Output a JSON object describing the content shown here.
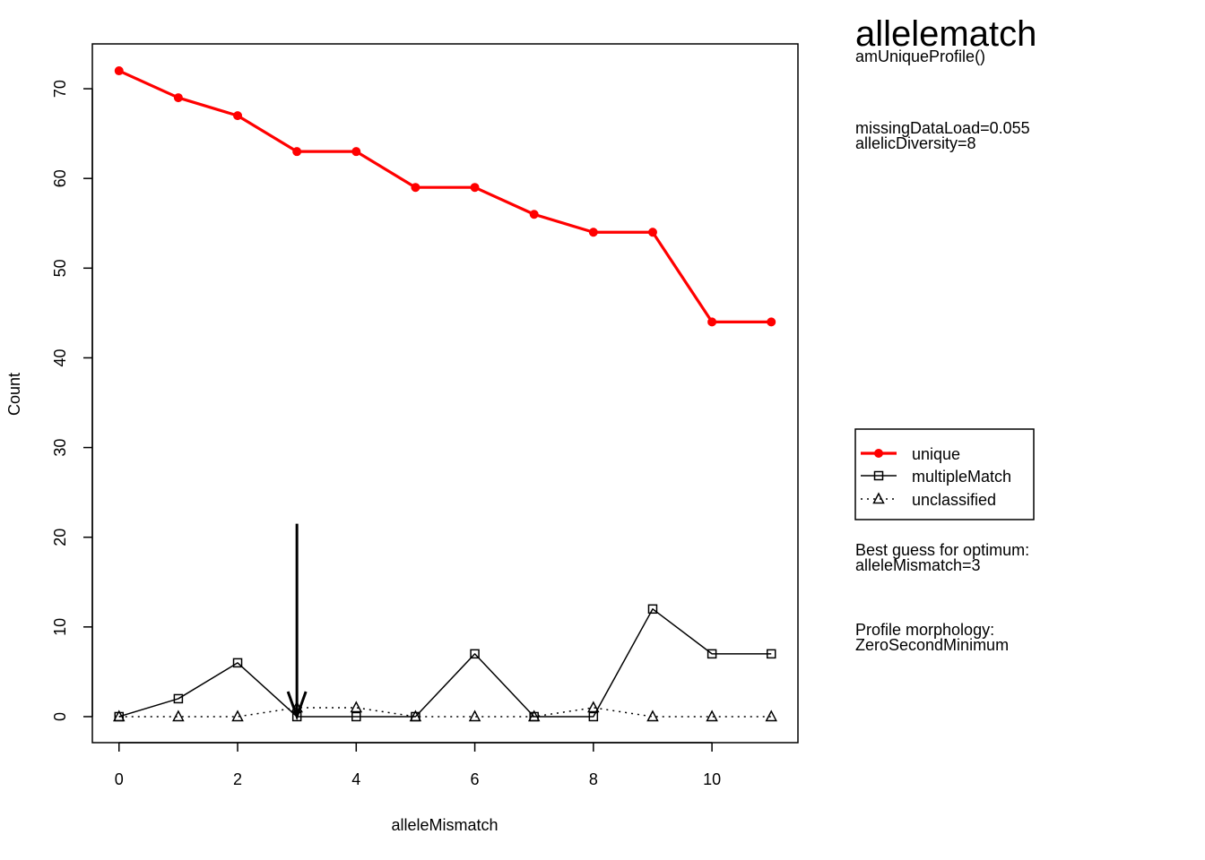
{
  "header": {
    "title": "allelematch",
    "subtitle": "amUniqueProfile()"
  },
  "stats": {
    "line1": "missingDataLoad=0.055",
    "line2": "allelicDiversity=8"
  },
  "guess": {
    "line1": "Best guess for optimum:",
    "line2": "alleleMismatch=3"
  },
  "morphology": {
    "line1": "Profile morphology:",
    "line2": "ZeroSecondMinimum"
  },
  "chart_data": {
    "type": "line",
    "xlabel": "alleleMismatch",
    "ylabel": "Count",
    "x": [
      0,
      1,
      2,
      3,
      4,
      5,
      6,
      7,
      8,
      9,
      10,
      11
    ],
    "xlim": [
      -0.45,
      11.45
    ],
    "ylim": [
      -2.9,
      75
    ],
    "xticks": [
      0,
      2,
      4,
      6,
      8,
      10
    ],
    "yticks": [
      0,
      10,
      20,
      30,
      40,
      50,
      60,
      70
    ],
    "grid": false,
    "legend_position": "right",
    "series": [
      {
        "name": "unique",
        "color": "#ff0000",
        "marker": "circle",
        "line": "solid",
        "values": [
          72,
          69,
          67,
          63,
          63,
          59,
          59,
          56,
          54,
          54,
          44,
          44
        ]
      },
      {
        "name": "multipleMatch",
        "color": "#000000",
        "marker": "square",
        "line": "solid",
        "values": [
          0,
          2,
          6,
          0,
          0,
          0,
          7,
          0,
          0,
          12,
          7,
          7
        ]
      },
      {
        "name": "unclassified",
        "color": "#000000",
        "marker": "triangle",
        "line": "dotted",
        "values": [
          0,
          0,
          0,
          1,
          1,
          0,
          0,
          0,
          1,
          0,
          0,
          0
        ]
      }
    ],
    "annotations": [
      {
        "type": "arrow",
        "x": 3,
        "y_from": 21.5,
        "y_to": 0
      }
    ]
  }
}
